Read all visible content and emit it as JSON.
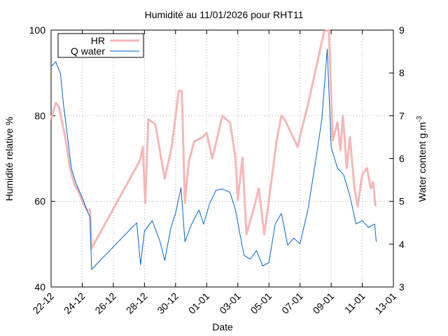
{
  "chart_data": {
    "type": "line",
    "title": "Humidité au 11/01/2026 pour RHT11",
    "x_label": "Date",
    "y_label": "Humidité relative %",
    "y2_label": "Water content g.m",
    "y2_label_sup": "-3",
    "xlim": [
      0,
      22
    ],
    "xticks": [
      {
        "value": 0,
        "label": "22-12"
      },
      {
        "value": 2,
        "label": "24-12"
      },
      {
        "value": 4,
        "label": "26-12"
      },
      {
        "value": 6,
        "label": "28-12"
      },
      {
        "value": 8,
        "label": "30-12"
      },
      {
        "value": 10,
        "label": "01-01"
      },
      {
        "value": 12,
        "label": "03-01"
      },
      {
        "value": 14,
        "label": "05-01"
      },
      {
        "value": 16,
        "label": "07-01"
      },
      {
        "value": 18,
        "label": "09-01"
      },
      {
        "value": 20,
        "label": "11-01"
      },
      {
        "value": 22,
        "label": "13-01"
      }
    ],
    "ylim": [
      40,
      100
    ],
    "yticks": [
      40,
      60,
      80,
      100
    ],
    "y2lim": [
      3,
      9
    ],
    "y2ticks": [
      3,
      4,
      5,
      6,
      7,
      8,
      9
    ],
    "grid": true,
    "legend": "upper-left",
    "series": [
      {
        "name": "HR",
        "color": "#f7b6b6",
        "axis": "y",
        "x": [
          0,
          0.3,
          0.5,
          0.8,
          1,
          1.2,
          1.5,
          1.8,
          2,
          2.3,
          2.5,
          2.6,
          5.7,
          5.9,
          6.05,
          6.25,
          6.7,
          7.3,
          7.75,
          8.2,
          8.4,
          8.6,
          8.85,
          9.2,
          9.75,
          10,
          10.35,
          10.65,
          11,
          11.5,
          11.85,
          12,
          12.3,
          12.55,
          13,
          13.35,
          13.7,
          14,
          14.5,
          14.8,
          15,
          15.85,
          16.05,
          16.5,
          17.55,
          17.85,
          18.1,
          18.4,
          18.6,
          18.75,
          19,
          19.2,
          19.5,
          19.7,
          20,
          20.3,
          20.55,
          20.7,
          20.85
        ],
        "values": [
          79.2,
          83,
          82,
          77,
          73,
          67.8,
          64,
          62,
          60,
          58,
          58,
          49,
          69.5,
          72.7,
          59.6,
          79.2,
          78,
          65.3,
          72.7,
          85.8,
          85.8,
          59.6,
          69.4,
          74,
          75,
          76,
          70,
          74.3,
          80,
          78.4,
          70.2,
          60.4,
          70.2,
          52.3,
          58,
          63,
          52.3,
          60.4,
          74.3,
          80,
          79.2,
          72.7,
          76,
          82.5,
          99.7,
          100,
          74.3,
          78.4,
          72,
          80,
          67.8,
          75,
          63,
          58.8,
          66.2,
          67.8,
          63,
          64.5,
          58.8
        ]
      },
      {
        "name": "Q water",
        "color": "#0066cc",
        "axis": "y2",
        "x": [
          0,
          0.3,
          0.6,
          0.8,
          1,
          1.3,
          1.6,
          2,
          2.3,
          2.5,
          2.6,
          5.2,
          5.5,
          5.75,
          6,
          6.5,
          7,
          7.3,
          7.7,
          8,
          8.35,
          8.6,
          9,
          9.5,
          9.8,
          10.2,
          10.6,
          11,
          11.5,
          11.85,
          12.1,
          12.4,
          12.8,
          13.2,
          13.6,
          14,
          14.4,
          14.8,
          15.2,
          15.6,
          16,
          16.5,
          17,
          17.4,
          17.75,
          18,
          18.4,
          18.8,
          19.2,
          19.6,
          20,
          20.4,
          20.8,
          20.9
        ],
        "values": [
          8.15,
          8.26,
          7.99,
          7.25,
          6.68,
          5.78,
          5.42,
          5.09,
          4.8,
          4.63,
          3.41,
          4.39,
          4.5,
          3.52,
          4.31,
          4.55,
          4.06,
          3.62,
          4.39,
          4.72,
          5.32,
          4.06,
          4.44,
          4.8,
          4.47,
          4.96,
          5.26,
          5.29,
          5.21,
          4.8,
          4.31,
          3.74,
          3.65,
          3.85,
          3.49,
          3.57,
          4.47,
          4.72,
          3.98,
          4.14,
          4.01,
          4.8,
          5.94,
          6.92,
          8.56,
          6.27,
          5.78,
          5.62,
          5.13,
          4.47,
          4.55,
          4.39,
          4.47,
          4.06
        ]
      }
    ]
  }
}
